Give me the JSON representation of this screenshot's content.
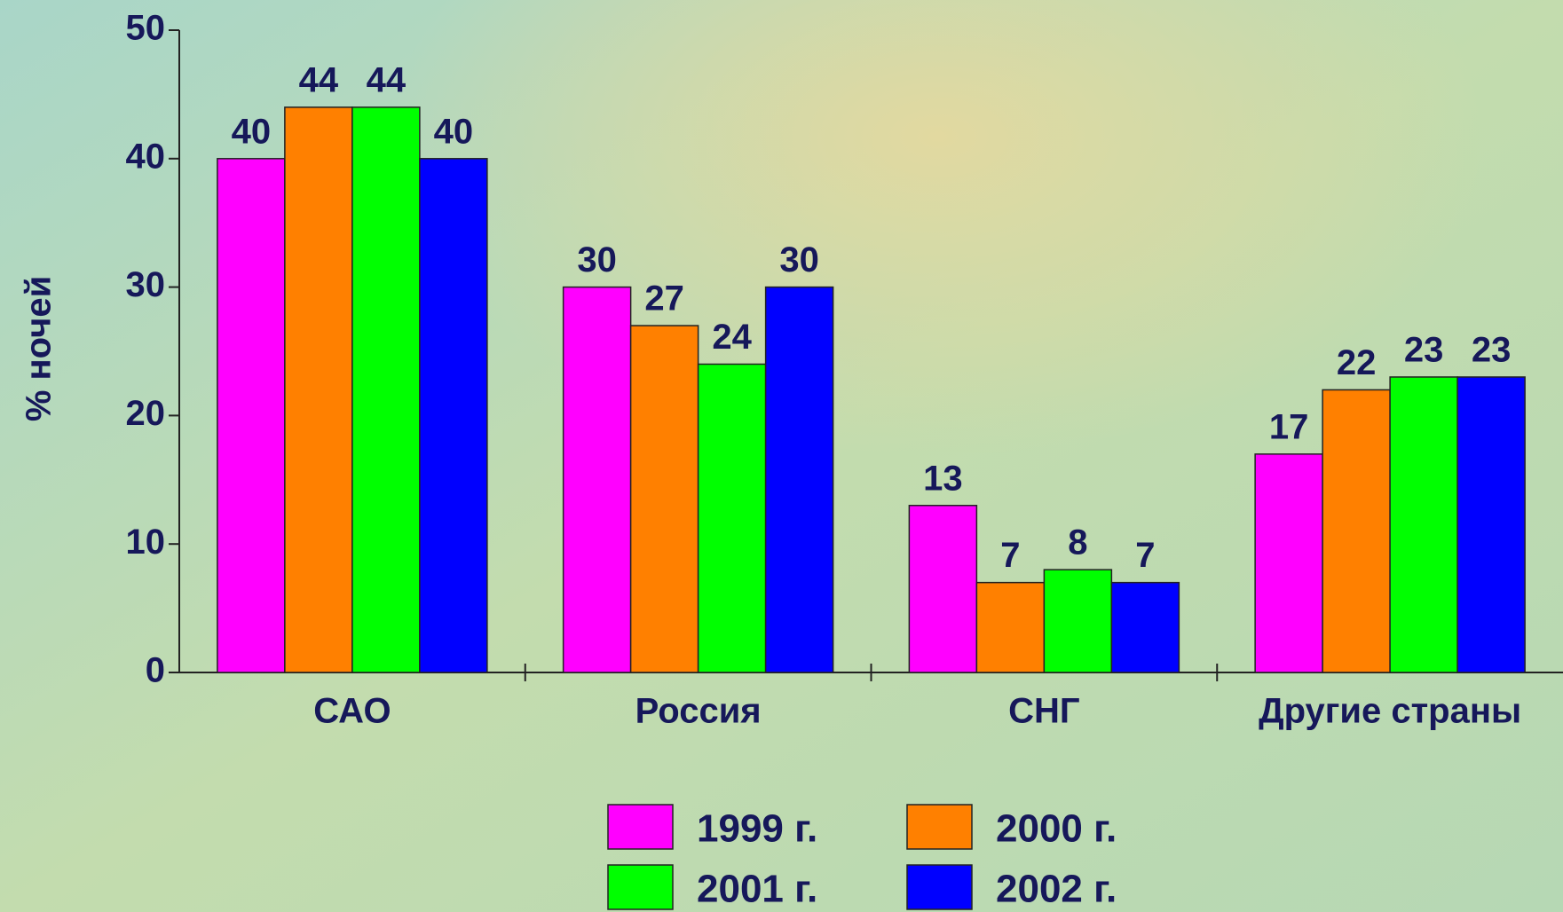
{
  "chart_data": {
    "type": "bar",
    "y_label": "% ночей",
    "categories": [
      "САО",
      "Россия",
      "СНГ",
      "Другие страны"
    ],
    "series": [
      {
        "name": "1999 г.",
        "color": "#ff00ff",
        "values": [
          40,
          30,
          13,
          17
        ]
      },
      {
        "name": "2000 г.",
        "color": "#ff8000",
        "values": [
          44,
          27,
          7,
          22
        ]
      },
      {
        "name": "2001 г.",
        "color": "#00ff00",
        "values": [
          44,
          24,
          8,
          23
        ]
      },
      {
        "name": "2002 г.",
        "color": "#0000ff",
        "values": [
          40,
          30,
          7,
          23
        ]
      }
    ],
    "ylim": [
      0,
      50
    ],
    "yticks": [
      0,
      10,
      20,
      30,
      40,
      50
    ],
    "grid": false,
    "legend": "bottom",
    "data_labels": true
  }
}
